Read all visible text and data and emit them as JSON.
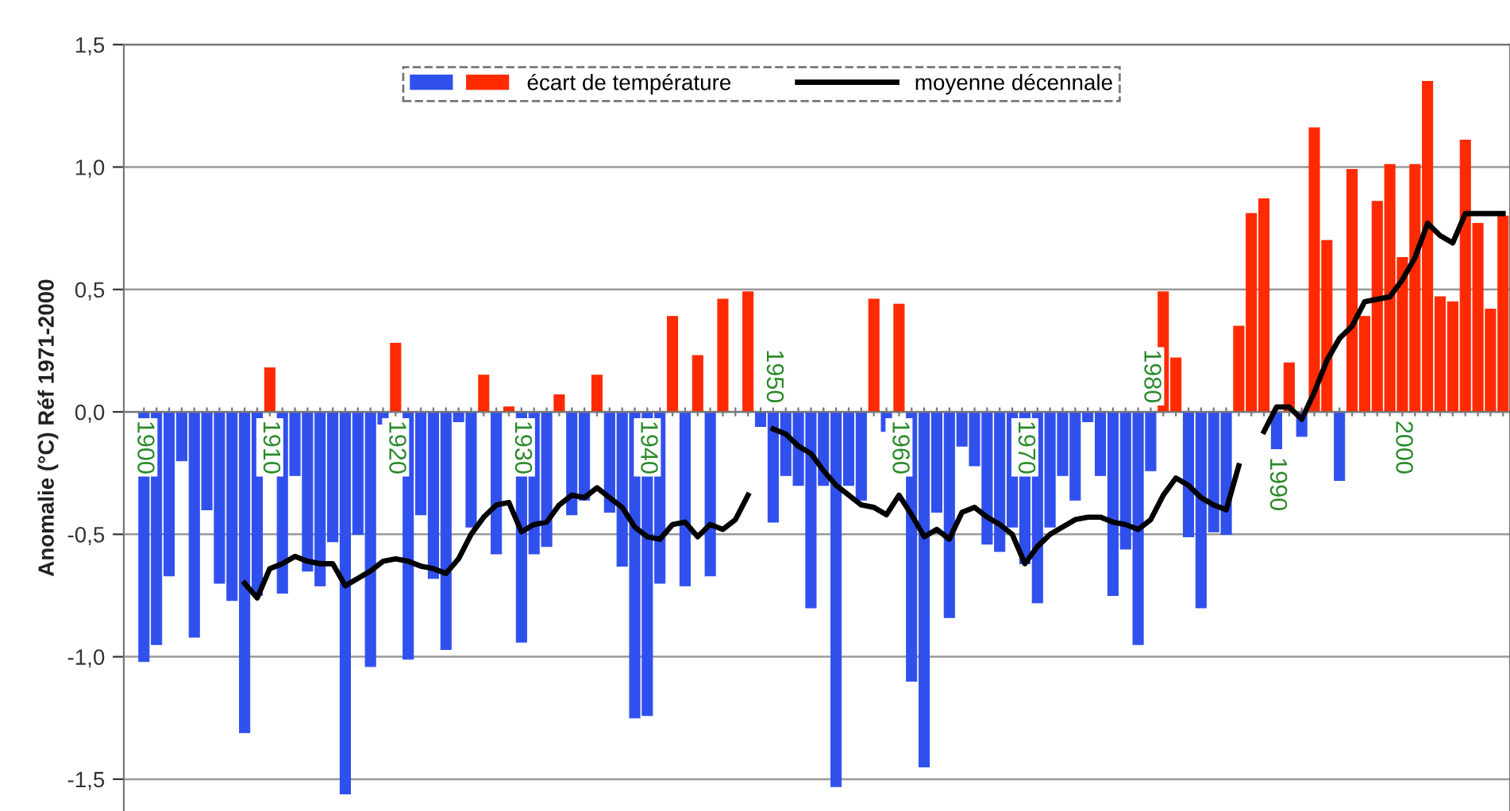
{
  "chart_data": {
    "type": "bar",
    "ylabel": "Anomalie (°C) Réf 1971-2000",
    "categories": [
      "1900",
      null,
      null,
      null,
      null,
      null,
      null,
      null,
      null,
      null,
      "1910",
      null,
      null,
      null,
      null,
      null,
      null,
      null,
      null,
      null,
      "1920",
      null,
      null,
      null,
      null,
      null,
      null,
      null,
      null,
      null,
      "1930",
      null,
      null,
      null,
      null,
      null,
      null,
      null,
      null,
      null,
      "1940",
      null,
      null,
      null,
      null,
      null,
      null,
      null,
      null,
      null,
      "1950",
      null,
      null,
      null,
      null,
      null,
      null,
      null,
      null,
      null,
      "1960",
      null,
      null,
      null,
      null,
      null,
      null,
      null,
      null,
      null,
      "1970",
      null,
      null,
      null,
      null,
      null,
      null,
      null,
      null,
      null,
      "1980",
      null,
      null,
      null,
      null,
      null,
      null,
      null,
      null,
      null,
      "1990",
      null,
      null,
      null,
      null,
      null,
      null,
      null,
      null,
      null,
      "2000",
      null,
      null,
      null,
      null,
      null,
      null,
      null,
      null
    ],
    "series": [
      {
        "type": "bar",
        "name": "écart de température",
        "values": [
          -1.02,
          -0.95,
          -0.67,
          -0.2,
          -0.92,
          -0.4,
          -0.7,
          -0.77,
          -1.31,
          -0.75,
          0.18,
          -0.74,
          -0.26,
          -0.65,
          -0.71,
          -0.53,
          -1.56,
          -0.5,
          -1.04,
          -0.05,
          0.28,
          -1.01,
          -0.42,
          -0.68,
          -0.97,
          -0.04,
          -0.47,
          0.15,
          -0.58,
          0.02,
          -0.94,
          -0.58,
          -0.55,
          0.07,
          -0.42,
          -0.36,
          0.15,
          -0.41,
          -0.63,
          -1.25,
          -1.24,
          -0.7,
          0.39,
          -0.71,
          0.23,
          -0.67,
          0.46,
          0.0,
          0.49,
          -0.06,
          -0.45,
          -0.26,
          -0.3,
          -0.8,
          -0.3,
          -1.53,
          -0.3,
          -0.36,
          0.46,
          -0.08,
          0.44,
          -1.1,
          -1.45,
          -0.41,
          -0.84,
          -0.14,
          -0.22,
          -0.54,
          -0.57,
          -0.47,
          -0.62,
          -0.78,
          -0.47,
          -0.26,
          -0.36,
          -0.04,
          -0.26,
          -0.75,
          -0.56,
          -0.95,
          -0.24,
          0.49,
          0.22,
          -0.51,
          -0.8,
          -0.49,
          -0.5,
          0.35,
          0.81,
          0.87,
          -0.15,
          0.2,
          -0.1,
          1.16,
          0.7,
          -0.28,
          0.99,
          0.39,
          0.86,
          1.01,
          0.63,
          1.01,
          1.35,
          0.47,
          0.45,
          1.11,
          0.77,
          0.42,
          0.8
        ],
        "colors": [
          "#3050ee",
          "#3050ee",
          "#3050ee",
          "#3050ee",
          "#3050ee",
          "#3050ee",
          "#3050ee",
          "#3050ee",
          "#3050ee",
          "#3050ee",
          "#ff2a00",
          "#3050ee",
          "#3050ee",
          "#3050ee",
          "#3050ee",
          "#3050ee",
          "#3050ee",
          "#3050ee",
          "#3050ee",
          "#3050ee",
          "#ff2a00",
          "#3050ee",
          "#3050ee",
          "#3050ee",
          "#3050ee",
          "#3050ee",
          "#3050ee",
          "#ff2a00",
          "#3050ee",
          "#ff2a00",
          "#3050ee",
          "#3050ee",
          "#3050ee",
          "#ff2a00",
          "#3050ee",
          "#3050ee",
          "#ff2a00",
          "#3050ee",
          "#3050ee",
          "#3050ee",
          "#3050ee",
          "#3050ee",
          "#ff2a00",
          "#3050ee",
          "#ff2a00",
          "#3050ee",
          "#ff2a00",
          "#ff2a00",
          "#ff2a00",
          "#3050ee",
          "#3050ee",
          "#3050ee",
          "#3050ee",
          "#3050ee",
          "#3050ee",
          "#3050ee",
          "#3050ee",
          "#3050ee",
          "#ff2a00",
          "#3050ee",
          "#ff2a00",
          "#3050ee",
          "#3050ee",
          "#3050ee",
          "#3050ee",
          "#3050ee",
          "#3050ee",
          "#3050ee",
          "#3050ee",
          "#3050ee",
          "#3050ee",
          "#3050ee",
          "#3050ee",
          "#3050ee",
          "#3050ee",
          "#3050ee",
          "#3050ee",
          "#3050ee",
          "#3050ee",
          "#3050ee",
          "#3050ee",
          "#ff2a00",
          "#ff2a00",
          "#3050ee",
          "#3050ee",
          "#3050ee",
          "#3050ee",
          "#ff2a00",
          "#ff2a00",
          "#ff2a00",
          "#3050ee",
          "#ff2a00",
          "#3050ee",
          "#ff2a00",
          "#ff2a00",
          "#3050ee",
          "#ff2a00",
          "#ff2a00",
          "#ff2a00",
          "#ff2a00",
          "#ff2a00",
          "#ff2a00",
          "#ff2a00",
          "#ff2a00",
          "#ff2a00",
          "#ff2a00",
          "#ff2a00",
          "#ff2a00",
          "#ff2a00"
        ]
      },
      {
        "type": "line",
        "name": "moyenne décennale",
        "color": "#000000",
        "values": [
          null,
          null,
          null,
          null,
          null,
          null,
          null,
          null,
          -0.7,
          -0.76,
          -0.64,
          -0.62,
          -0.59,
          -0.61,
          -0.62,
          -0.62,
          -0.71,
          -0.68,
          -0.65,
          -0.61,
          -0.6,
          -0.61,
          -0.63,
          -0.64,
          -0.66,
          -0.6,
          -0.5,
          -0.43,
          -0.38,
          -0.37,
          -0.49,
          -0.46,
          -0.45,
          -0.38,
          -0.34,
          -0.35,
          -0.31,
          -0.35,
          -0.39,
          -0.47,
          -0.51,
          -0.52,
          -0.46,
          -0.45,
          -0.51,
          -0.46,
          -0.48,
          -0.44,
          -0.34,
          null,
          -0.07,
          -0.09,
          -0.14,
          -0.17,
          -0.24,
          -0.3,
          -0.34,
          -0.38,
          -0.39,
          -0.42,
          -0.34,
          -0.42,
          -0.51,
          -0.48,
          -0.52,
          -0.41,
          -0.39,
          -0.43,
          -0.46,
          -0.5,
          -0.62,
          -0.55,
          -0.5,
          -0.47,
          -0.44,
          -0.43,
          -0.43,
          -0.45,
          -0.46,
          -0.48,
          -0.44,
          -0.34,
          -0.27,
          -0.3,
          -0.35,
          -0.38,
          -0.4,
          -0.22,
          null,
          -0.08,
          0.02,
          0.02,
          -0.03,
          0.08,
          0.21,
          0.3,
          0.35,
          0.45,
          0.46,
          0.47,
          0.54,
          0.63,
          0.77,
          0.72,
          0.69,
          0.81,
          0.81,
          0.81,
          0.81
        ]
      }
    ],
    "ylim": [
      -1.63,
      1.5
    ],
    "yticks": [
      {
        "value": 1.5,
        "label": "1,5"
      },
      {
        "value": 1.0,
        "label": "1,0"
      },
      {
        "value": 0.5,
        "label": "0,5"
      },
      {
        "value": 0.0,
        "label": "0,0"
      },
      {
        "value": -0.5,
        "label": "-0,5"
      },
      {
        "value": -1.0,
        "label": "-1,0"
      },
      {
        "value": -1.5,
        "label": "-1,5"
      }
    ],
    "grid": "y",
    "legend": "top"
  }
}
